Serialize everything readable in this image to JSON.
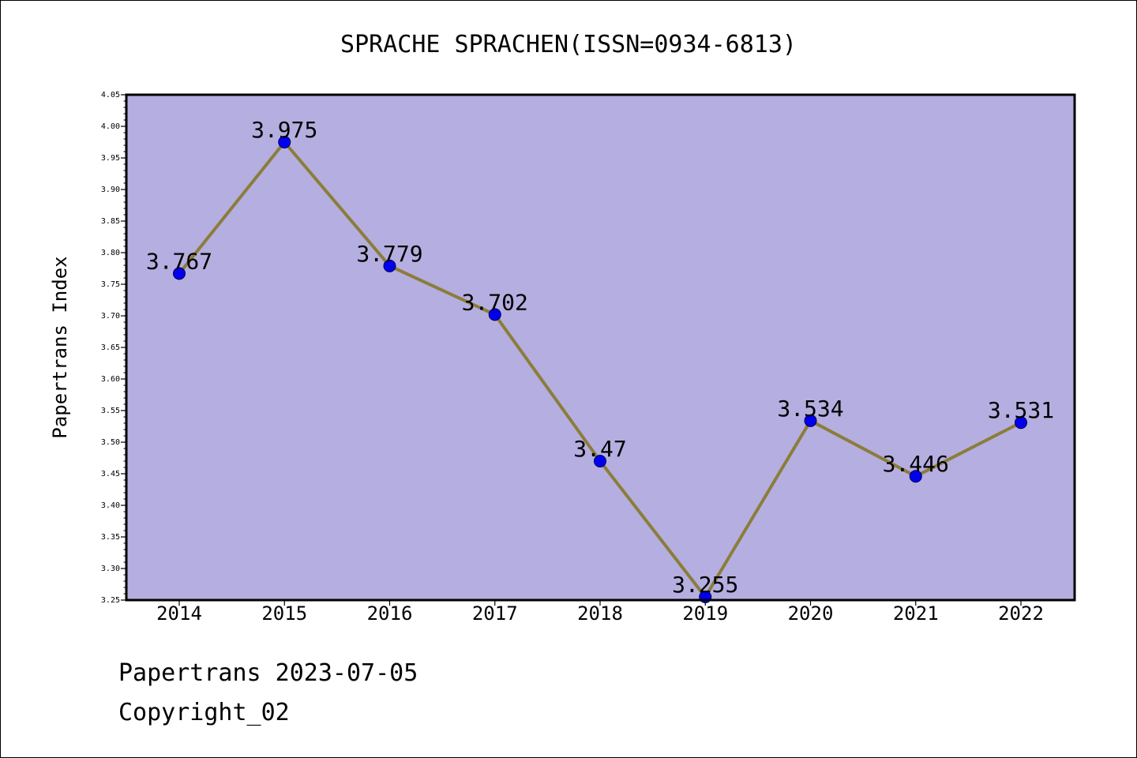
{
  "chart_data": {
    "type": "line",
    "title": "SPRACHE SPRACHEN(ISSN=0934-6813)",
    "xlabel": "",
    "ylabel": "Papertrans Index",
    "categories": [
      "2014",
      "2015",
      "2016",
      "2017",
      "2018",
      "2019",
      "2020",
      "2021",
      "2022"
    ],
    "series": [
      {
        "values": [
          3.767,
          3.975,
          3.779,
          3.702,
          3.47,
          3.255,
          3.534,
          3.446,
          3.531
        ],
        "labels": [
          "3.767",
          "3.975",
          "3.779",
          "3.702",
          "3.47",
          "3.255",
          "3.534",
          "3.446",
          "3.531"
        ]
      }
    ],
    "ylim": [
      3.25,
      4.05
    ],
    "yticks": [
      "3.25",
      "3.30",
      "3.35",
      "3.40",
      "3.45",
      "3.50",
      "3.55",
      "3.60",
      "3.65",
      "3.70",
      "3.75",
      "3.80",
      "3.85",
      "3.90",
      "3.95",
      "4.00",
      "4.05"
    ],
    "grid": false,
    "legend": "none",
    "colors": {
      "plot_background": "#b5aee0",
      "line": "#8b7d3a",
      "marker": "#0000ee"
    }
  },
  "footer": {
    "date_line": "Papertrans 2023-07-05",
    "copyright_line": "Copyright_02"
  }
}
